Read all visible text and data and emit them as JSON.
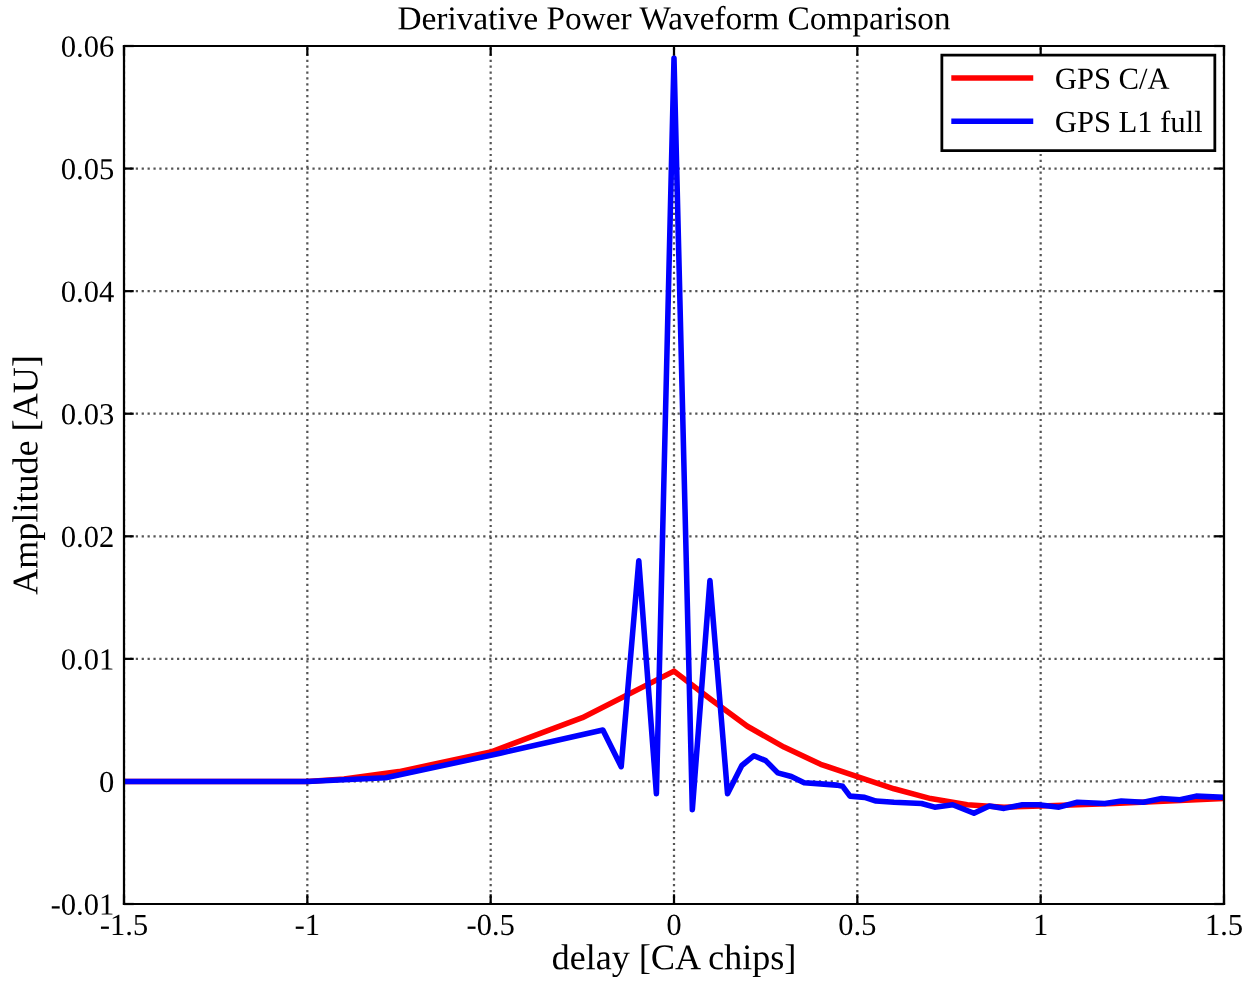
{
  "chart_data": {
    "type": "line",
    "title": "Derivative Power Waveform Comparison",
    "xlabel": "delay [CA chips]",
    "ylabel": "Amplitude [AU]",
    "xlim": [
      -1.5,
      1.5
    ],
    "xticks": [
      -1.5,
      -1,
      -0.5,
      0,
      0.5,
      1,
      1.5
    ],
    "ylim": [
      -0.01,
      0.06
    ],
    "yticks": [
      -0.01,
      0,
      0.01,
      0.02,
      0.03,
      0.04,
      0.05,
      0.06
    ],
    "grid": true,
    "legend": "top right",
    "line_style": "solid",
    "marker": "none",
    "series": [
      {
        "name": "GPS C/A",
        "color": "#ff0000",
        "x": [
          -1.5,
          -1.0,
          -0.9,
          -0.75,
          -0.5,
          -0.25,
          0,
          0.1,
          0.2,
          0.3,
          0.4,
          0.5,
          0.6,
          0.7,
          0.8,
          0.9,
          1.0,
          1.2,
          1.5
        ],
        "values": [
          0,
          0,
          0.0002,
          0.0008,
          0.0024,
          0.0052,
          0.009,
          0.0067,
          0.0045,
          0.0028,
          0.0014,
          0.0004,
          -0.0006,
          -0.0014,
          -0.0019,
          -0.0021,
          -0.002,
          -0.0018,
          -0.0014
        ]
      },
      {
        "name": "GPS L1 full",
        "color": "#0000ff",
        "x": [
          -1.5,
          -1.0,
          -0.786,
          -0.474,
          -0.194,
          -0.144,
          -0.096,
          -0.048,
          0,
          0.05,
          0.098,
          0.146,
          0.185,
          0.218,
          0.25,
          0.283,
          0.32,
          0.355,
          0.4,
          0.444,
          0.46,
          0.48,
          0.52,
          0.551,
          0.6,
          0.675,
          0.711,
          0.76,
          0.818,
          0.86,
          0.9,
          0.95,
          0.995,
          1.05,
          1.1,
          1.175,
          1.22,
          1.28,
          1.33,
          1.38,
          1.424,
          1.5
        ],
        "values": [
          0,
          0,
          0.0003,
          0.0023,
          0.0042,
          0.0012,
          0.018,
          -0.001,
          0.059,
          -0.0023,
          0.0164,
          -0.001,
          0.0013,
          0.0021,
          0.0017,
          0.0007,
          0.0004,
          -0.0001,
          -0.0002,
          -0.0003,
          -0.0004,
          -0.0012,
          -0.0013,
          -0.0016,
          -0.0017,
          -0.0018,
          -0.0021,
          -0.0019,
          -0.0026,
          -0.002,
          -0.0022,
          -0.0019,
          -0.0019,
          -0.0021,
          -0.0017,
          -0.0018,
          -0.0016,
          -0.0017,
          -0.0014,
          -0.0015,
          -0.0012,
          -0.0013
        ]
      }
    ]
  }
}
